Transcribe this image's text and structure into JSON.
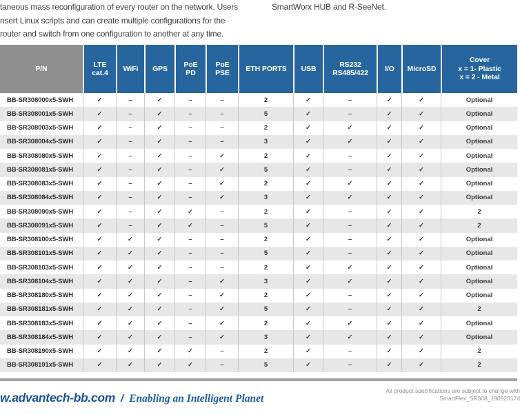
{
  "colors": {
    "header_blue": "#27659E",
    "pn_header_gray": "#8F8F8F",
    "alt_row_gray": "#E7E7E7",
    "footer_blue": "#19509F"
  },
  "intro": {
    "left_lines": [
      "taneous mass reconfiguration of every router on the network. Users",
      "nsert Linux scripts and can create multiple configurations for the",
      "router and switch from one configuration to another at any time."
    ],
    "right_line": "SmartWorx HUB and R-SeeNet."
  },
  "table": {
    "columns": [
      {
        "key": "pn",
        "label": "P/N"
      },
      {
        "key": "lte-cat4",
        "label": "LTE\ncat.4"
      },
      {
        "key": "wifi",
        "label": "WiFi"
      },
      {
        "key": "gps",
        "label": "GPS"
      },
      {
        "key": "poe-pd",
        "label": "PoE\nPD"
      },
      {
        "key": "poe-pse",
        "label": "PoE\nPSE"
      },
      {
        "key": "eth-ports",
        "label": "ETH PORTS"
      },
      {
        "key": "usb",
        "label": "USB"
      },
      {
        "key": "rs232-rs485-422",
        "label": "RS232\nRS485/422"
      },
      {
        "key": "io",
        "label": "I/O"
      },
      {
        "key": "microsd",
        "label": "MicroSD"
      },
      {
        "key": "cover",
        "label": "Cover\nx = 1- Plastic\nx = 2 - Metal"
      }
    ],
    "rows": [
      {
        "pn": "BB-SR308000x5-SWH",
        "values": [
          "✓",
          "–",
          "✓",
          "–",
          "–",
          "2",
          "✓",
          "–",
          "✓",
          "✓",
          "Optional"
        ]
      },
      {
        "pn": "BB-SR308001x5-SWH",
        "values": [
          "✓",
          "–",
          "✓",
          "–",
          "–",
          "5",
          "✓",
          "–",
          "✓",
          "✓",
          "Optional"
        ]
      },
      {
        "pn": "BB-SR308003x5-SWH",
        "values": [
          "✓",
          "–",
          "✓",
          "–",
          "–",
          "2",
          "✓",
          "✓",
          "✓",
          "✓",
          "Optional"
        ]
      },
      {
        "pn": "BB-SR308004x5-SWH",
        "values": [
          "✓",
          "–",
          "✓",
          "–",
          "–",
          "3",
          "✓",
          "✓",
          "✓",
          "✓",
          "Optional"
        ]
      },
      {
        "pn": "BB-SR308080x5-SWH",
        "values": [
          "✓",
          "–",
          "✓",
          "–",
          "✓",
          "2",
          "✓",
          "–",
          "✓",
          "✓",
          "Optional"
        ]
      },
      {
        "pn": "BB-SR308081x5-SWH",
        "values": [
          "✓",
          "–",
          "✓",
          "–",
          "✓",
          "5",
          "✓",
          "–",
          "✓",
          "✓",
          "Optional"
        ]
      },
      {
        "pn": "BB-SR308083x5-SWH",
        "values": [
          "✓",
          "–",
          "✓",
          "–",
          "✓",
          "2",
          "✓",
          "✓",
          "✓",
          "✓",
          "Optional"
        ]
      },
      {
        "pn": "BB-SR308084x5-SWH",
        "values": [
          "✓",
          "–",
          "✓",
          "–",
          "✓",
          "3",
          "✓",
          "✓",
          "✓",
          "✓",
          "Optional"
        ]
      },
      {
        "pn": "BB-SR308090x5-SWH",
        "values": [
          "✓",
          "–",
          "✓",
          "✓",
          "–",
          "2",
          "✓",
          "–",
          "✓",
          "✓",
          "2"
        ]
      },
      {
        "pn": "BB-SR308091x5-SWH",
        "values": [
          "✓",
          "–",
          "✓",
          "✓",
          "–",
          "5",
          "✓",
          "–",
          "✓",
          "✓",
          "2"
        ]
      },
      {
        "pn": "BB-SR308100x5-SWH",
        "values": [
          "✓",
          "✓",
          "✓",
          "–",
          "–",
          "2",
          "✓",
          "–",
          "✓",
          "✓",
          "Optional"
        ]
      },
      {
        "pn": "BB-SR308101x5-SWH",
        "values": [
          "✓",
          "✓",
          "✓",
          "–",
          "–",
          "5",
          "✓",
          "–",
          "✓",
          "✓",
          "Optional"
        ]
      },
      {
        "pn": "BB-SR308103x5-SWH",
        "values": [
          "✓",
          "✓",
          "✓",
          "–",
          "–",
          "2",
          "✓",
          "✓",
          "✓",
          "✓",
          "Optional"
        ]
      },
      {
        "pn": "BB-SR308104x5-SWH",
        "values": [
          "✓",
          "✓",
          "✓",
          "–",
          "✓",
          "3",
          "✓",
          "✓",
          "✓",
          "✓",
          "Optional"
        ]
      },
      {
        "pn": "BB-SR308180x5-SWH",
        "values": [
          "✓",
          "✓",
          "✓",
          "–",
          "✓",
          "2",
          "✓",
          "–",
          "✓",
          "✓",
          "Optional"
        ]
      },
      {
        "pn": "BB-SR308181x5-SWH",
        "values": [
          "✓",
          "✓",
          "✓",
          "–",
          "✓",
          "5",
          "✓",
          "–",
          "✓",
          "✓",
          "2"
        ]
      },
      {
        "pn": "BB-SR308183x5-SWH",
        "values": [
          "✓",
          "✓",
          "✓",
          "–",
          "✓",
          "2",
          "✓",
          "✓",
          "✓",
          "✓",
          "Optional"
        ]
      },
      {
        "pn": "BB-SR308184x5-SWH",
        "values": [
          "✓",
          "✓",
          "✓",
          "–",
          "✓",
          "3",
          "✓",
          "✓",
          "✓",
          "✓",
          "Optional"
        ]
      },
      {
        "pn": "BB-SR308190x5-SWH",
        "values": [
          "✓",
          "✓",
          "✓",
          "✓",
          "–",
          "2",
          "✓",
          "–",
          "✓",
          "✓",
          "2"
        ]
      },
      {
        "pn": "BB-SR308191x5-SWH",
        "values": [
          "✓",
          "✓",
          "✓",
          "✓",
          "–",
          "5",
          "✓",
          "–",
          "✓",
          "✓",
          "2"
        ]
      }
    ]
  },
  "footer": {
    "website": "w.advantech-bb.com",
    "separator": "/",
    "slogan": "Enabling an Intelligent Planet",
    "note_line1": "All product specifications are subject to change with",
    "note_line2": "SmartFlex_SR308_19092017d"
  }
}
